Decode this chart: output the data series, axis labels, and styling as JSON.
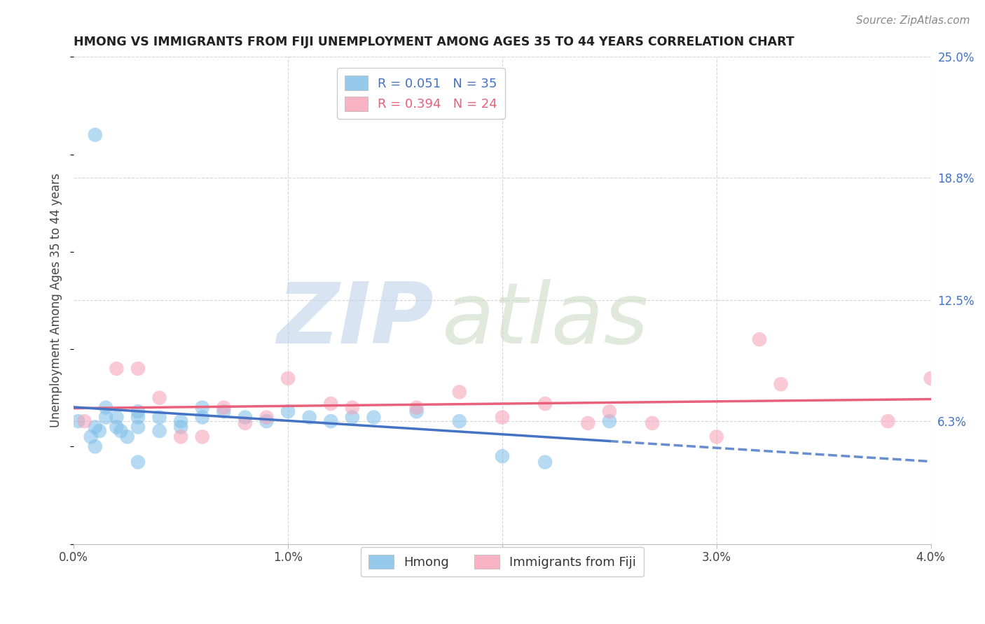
{
  "title": "HMONG VS IMMIGRANTS FROM FIJI UNEMPLOYMENT AMONG AGES 35 TO 44 YEARS CORRELATION CHART",
  "source": "Source: ZipAtlas.com",
  "ylabel": "Unemployment Among Ages 35 to 44 years",
  "xlim": [
    0.0,
    0.04
  ],
  "ylim": [
    0.0,
    0.25
  ],
  "xticks": [
    0.0,
    0.01,
    0.02,
    0.03,
    0.04
  ],
  "xtick_labels": [
    "0.0%",
    "1.0%",
    "2.0%",
    "3.0%",
    "4.0%"
  ],
  "ytick_labels_right": [
    "6.3%",
    "12.5%",
    "18.8%",
    "25.0%"
  ],
  "ytick_values_right": [
    0.063,
    0.125,
    0.188,
    0.25
  ],
  "hmong_color": "#7bbde8",
  "fiji_color": "#f5a0b5",
  "hmong_R": 0.051,
  "hmong_N": 35,
  "fiji_R": 0.394,
  "fiji_N": 24,
  "background_color": "#ffffff",
  "grid_color": "#cccccc",
  "watermark_zip": "ZIP",
  "watermark_atlas": "atlas",
  "watermark_color_zip": "#b8cfe8",
  "watermark_color_atlas": "#c8d8c0",
  "trend_blue": "#4472c4",
  "trend_pink": "#e8607a",
  "hmong_x": [
    0.0002,
    0.0008,
    0.001,
    0.001,
    0.0012,
    0.0015,
    0.0015,
    0.002,
    0.002,
    0.0022,
    0.0025,
    0.003,
    0.003,
    0.003,
    0.004,
    0.004,
    0.005,
    0.005,
    0.006,
    0.006,
    0.007,
    0.008,
    0.009,
    0.01,
    0.011,
    0.012,
    0.013,
    0.014,
    0.016,
    0.018,
    0.02,
    0.022,
    0.025,
    0.001,
    0.003
  ],
  "hmong_y": [
    0.063,
    0.055,
    0.06,
    0.05,
    0.058,
    0.065,
    0.07,
    0.06,
    0.065,
    0.058,
    0.055,
    0.065,
    0.068,
    0.06,
    0.065,
    0.058,
    0.063,
    0.06,
    0.07,
    0.065,
    0.068,
    0.065,
    0.063,
    0.068,
    0.065,
    0.063,
    0.065,
    0.065,
    0.068,
    0.063,
    0.045,
    0.042,
    0.063,
    0.21,
    0.042
  ],
  "fiji_x": [
    0.0005,
    0.002,
    0.003,
    0.004,
    0.005,
    0.006,
    0.007,
    0.008,
    0.009,
    0.01,
    0.012,
    0.013,
    0.016,
    0.018,
    0.02,
    0.022,
    0.024,
    0.025,
    0.027,
    0.03,
    0.032,
    0.033,
    0.038,
    0.04
  ],
  "fiji_y": [
    0.063,
    0.09,
    0.09,
    0.075,
    0.055,
    0.055,
    0.07,
    0.062,
    0.065,
    0.085,
    0.072,
    0.07,
    0.07,
    0.078,
    0.065,
    0.072,
    0.062,
    0.068,
    0.062,
    0.055,
    0.105,
    0.082,
    0.063,
    0.085
  ]
}
